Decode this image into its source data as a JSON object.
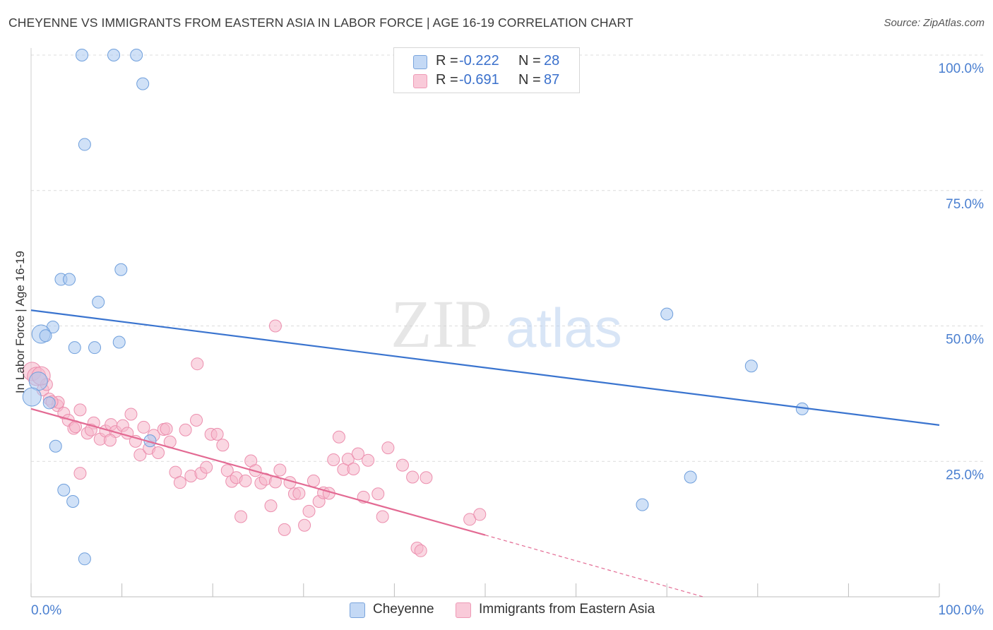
{
  "header": {
    "title": "CHEYENNE VS IMMIGRANTS FROM EASTERN ASIA IN LABOR FORCE | AGE 16-19 CORRELATION CHART",
    "source": "Source: ZipAtlas.com"
  },
  "watermark": {
    "zip": "ZIP",
    "atlas": "atlas"
  },
  "legend": {
    "rows": [
      {
        "r_label": "R =",
        "r_value": "-0.222",
        "n_label": "N =",
        "n_value": "28",
        "color": "#a9c8f0"
      },
      {
        "r_label": "R =",
        "r_value": "-0.691",
        "n_label": "N =",
        "n_value": "87",
        "color": "#f6b7cb"
      }
    ]
  },
  "bottom_legend": {
    "items": [
      {
        "label": "Cheyenne"
      },
      {
        "label": "Immigrants from Eastern Asia"
      }
    ]
  },
  "chart_data": {
    "type": "scatter",
    "title": "CHEYENNE VS IMMIGRANTS FROM EASTERN ASIA IN LABOR FORCE | AGE 16-19 CORRELATION CHART",
    "xlabel": "",
    "ylabel": "In Labor Force | Age 16-19",
    "xlim": [
      0,
      100
    ],
    "ylim": [
      0,
      100
    ],
    "x_tick_labels": [
      "0.0%",
      "100.0%"
    ],
    "y_tick_labels": [
      "25.0%",
      "50.0%",
      "75.0%",
      "100.0%"
    ],
    "y_ticks": [
      25,
      50,
      75,
      100
    ],
    "grid": true,
    "legend_position": "top-center",
    "colors": {
      "cheyenne": "#a9c8f0",
      "cheyenne_edge": "#6f9fdc",
      "cheyenne_line": "#3a74cf",
      "immigrants": "#f6b7cb",
      "immigrants_edge": "#ec8fae",
      "immigrants_line": "#e36a93"
    },
    "series": [
      {
        "name": "Cheyenne",
        "color": "#a9c8f0",
        "points": [
          [
            5.6,
            100.0
          ],
          [
            9.1,
            100.0
          ],
          [
            11.6,
            100.0
          ],
          [
            12.3,
            94.7
          ],
          [
            5.9,
            83.5
          ],
          [
            9.9,
            60.4
          ],
          [
            3.3,
            58.6
          ],
          [
            4.2,
            58.6
          ],
          [
            7.4,
            54.4
          ],
          [
            2.4,
            49.8
          ],
          [
            1.1,
            48.5
          ],
          [
            1.6,
            48.2
          ],
          [
            4.8,
            46.0
          ],
          [
            7.0,
            46.0
          ],
          [
            9.7,
            47.0
          ],
          [
            0.8,
            39.8
          ],
          [
            0.1,
            36.9
          ],
          [
            2.0,
            35.8
          ],
          [
            2.7,
            27.8
          ],
          [
            13.1,
            28.8
          ],
          [
            3.6,
            19.7
          ],
          [
            4.6,
            17.6
          ],
          [
            5.9,
            7.0
          ],
          [
            70.0,
            52.2
          ],
          [
            79.3,
            42.6
          ],
          [
            84.9,
            34.7
          ],
          [
            67.3,
            17.0
          ],
          [
            72.6,
            22.1
          ]
        ],
        "trend": {
          "x": [
            0,
            100
          ],
          "y": [
            52.9,
            31.7
          ]
        }
      },
      {
        "name": "Immigrants from Eastern Asia",
        "color": "#f6b7cb",
        "points": [
          [
            0.1,
            41.6
          ],
          [
            0.6,
            40.7
          ],
          [
            1.3,
            38.2
          ],
          [
            2.0,
            36.5
          ],
          [
            2.9,
            35.3
          ],
          [
            3.6,
            33.9
          ],
          [
            4.1,
            32.6
          ],
          [
            4.7,
            31.1
          ],
          [
            5.4,
            34.5
          ],
          [
            6.2,
            30.2
          ],
          [
            6.9,
            32.1
          ],
          [
            7.6,
            29.1
          ],
          [
            8.2,
            30.6
          ],
          [
            8.8,
            31.8
          ],
          [
            9.3,
            30.5
          ],
          [
            10.1,
            31.6
          ],
          [
            10.6,
            30.2
          ],
          [
            11.0,
            33.7
          ],
          [
            11.5,
            28.7
          ],
          [
            12.0,
            26.2
          ],
          [
            12.4,
            31.3
          ],
          [
            13.0,
            27.4
          ],
          [
            13.5,
            29.8
          ],
          [
            14.0,
            26.6
          ],
          [
            14.6,
            30.9
          ],
          [
            15.3,
            28.6
          ],
          [
            15.9,
            23.0
          ],
          [
            16.4,
            21.1
          ],
          [
            17.0,
            30.8
          ],
          [
            17.6,
            22.3
          ],
          [
            18.2,
            32.6
          ],
          [
            18.7,
            22.8
          ],
          [
            19.3,
            23.9
          ],
          [
            19.8,
            30.0
          ],
          [
            20.5,
            30.0
          ],
          [
            21.1,
            28.0
          ],
          [
            21.6,
            23.3
          ],
          [
            22.1,
            21.3
          ],
          [
            22.6,
            22.0
          ],
          [
            23.1,
            14.8
          ],
          [
            23.6,
            21.4
          ],
          [
            24.2,
            25.1
          ],
          [
            24.7,
            23.3
          ],
          [
            25.3,
            21.0
          ],
          [
            25.8,
            21.7
          ],
          [
            26.4,
            16.8
          ],
          [
            26.9,
            21.2
          ],
          [
            27.4,
            23.4
          ],
          [
            27.9,
            12.4
          ],
          [
            28.5,
            21.1
          ],
          [
            29.0,
            19.0
          ],
          [
            29.5,
            19.1
          ],
          [
            30.1,
            13.2
          ],
          [
            30.6,
            15.8
          ],
          [
            31.1,
            21.4
          ],
          [
            31.7,
            17.6
          ],
          [
            32.2,
            19.2
          ],
          [
            32.8,
            19.1
          ],
          [
            33.3,
            25.3
          ],
          [
            33.9,
            29.5
          ],
          [
            34.4,
            23.5
          ],
          [
            34.9,
            25.4
          ],
          [
            35.5,
            23.6
          ],
          [
            36.0,
            26.4
          ],
          [
            36.6,
            18.4
          ],
          [
            37.1,
            25.2
          ],
          [
            38.2,
            19.0
          ],
          [
            38.7,
            14.8
          ],
          [
            39.3,
            27.5
          ],
          [
            40.9,
            24.3
          ],
          [
            42.5,
            9.0
          ],
          [
            42.9,
            8.5
          ],
          [
            42.0,
            22.1
          ],
          [
            43.5,
            22.0
          ],
          [
            48.3,
            14.3
          ],
          [
            49.4,
            15.2
          ],
          [
            3.0,
            35.9
          ],
          [
            1.7,
            39.2
          ],
          [
            4.9,
            31.4
          ],
          [
            6.6,
            30.8
          ],
          [
            26.9,
            50.0
          ],
          [
            18.3,
            43.0
          ],
          [
            8.7,
            28.9
          ],
          [
            5.4,
            22.8
          ],
          [
            14.9,
            31.0
          ],
          [
            2.3,
            36.0
          ],
          [
            1.1,
            40.8
          ]
        ],
        "trend": {
          "x": [
            0,
            50
          ],
          "y": [
            34.7,
            11.4
          ]
        },
        "trend_extension": {
          "x": [
            50,
            74
          ],
          "y": [
            11.4,
            0.0
          ]
        }
      }
    ]
  }
}
